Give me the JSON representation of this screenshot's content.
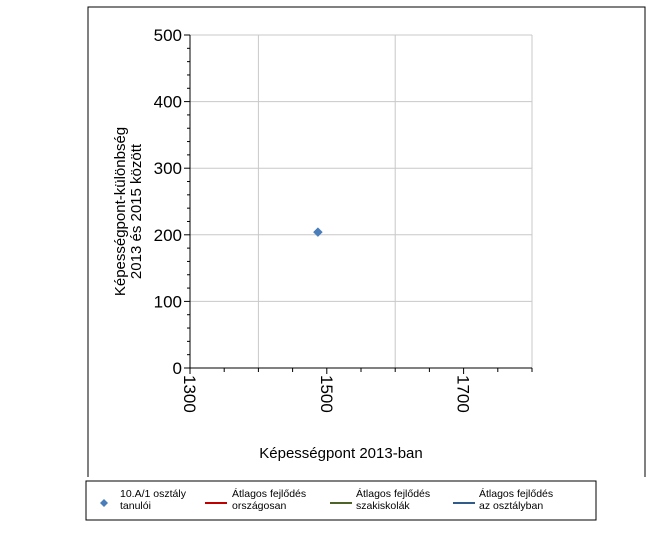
{
  "chart_data": {
    "type": "scatter",
    "title": "",
    "xlabel": "Képességpont 2013-ban",
    "ylabel_lines": [
      "Képességpont-különbség",
      "2013 és 2015 között"
    ],
    "xlim": [
      1300,
      1800
    ],
    "ylim": [
      0,
      500
    ],
    "x_ticks": [
      1300,
      1500,
      1700
    ],
    "x_tick_labels": [
      "1300",
      "1500",
      "1700"
    ],
    "y_ticks": [
      0,
      100,
      200,
      300,
      400,
      500
    ],
    "y_tick_labels": [
      "0",
      "100",
      "200",
      "300",
      "400",
      "500"
    ],
    "x_minor_step": 50,
    "y_minor_step": 20,
    "x_gridlines": [
      1400,
      1600,
      1800
    ],
    "grid": true,
    "legend_position": "bottom",
    "series": [
      {
        "name": "10.A/1 osztály tanulói",
        "legend_lines": [
          "10.A/1 osztály",
          "tanulói"
        ],
        "marker": "diamond",
        "color": "#4a7ebb",
        "points": [
          {
            "x": 1487,
            "y": 204
          }
        ]
      },
      {
        "name": "Átlagos fejlődés országosan",
        "legend_lines": [
          "Átlagos fejlődés",
          "országosan"
        ],
        "marker": "line",
        "color": "#c00000",
        "points": []
      },
      {
        "name": "Átlagos fejlődés szakiskolák",
        "legend_lines": [
          "Átlagos fejlődés",
          "szakiskolák"
        ],
        "marker": "line",
        "color": "#4f6228",
        "points": []
      },
      {
        "name": "Átlagos fejlődés az osztályban",
        "legend_lines": [
          "Átlagos fejlődés",
          "az osztályban"
        ],
        "marker": "line",
        "color": "#2f5c8a",
        "points": []
      }
    ]
  }
}
